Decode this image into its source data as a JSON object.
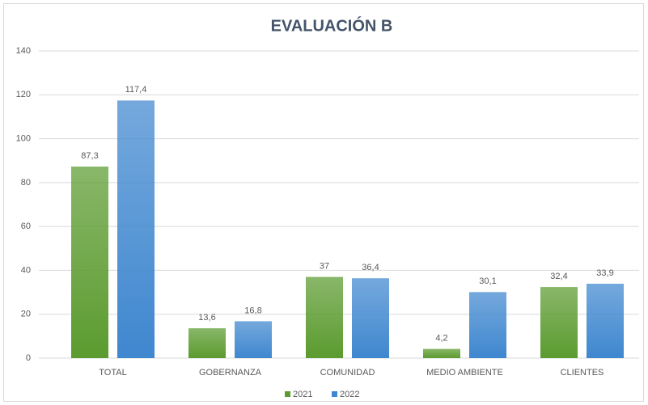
{
  "chart_data": {
    "type": "bar",
    "title": "EVALUACIÓN B",
    "categories": [
      "TOTAL",
      "GOBERNANZA",
      "COMUNIDAD",
      "MEDIO AMBIENTE",
      "CLIENTES"
    ],
    "series": [
      {
        "name": "2021",
        "color": "#5b9b2f",
        "values": [
          87.3,
          13.6,
          37,
          4.2,
          32.4
        ],
        "value_labels": [
          "87,3",
          "13,6",
          "37",
          "4,2",
          "32,4"
        ]
      },
      {
        "name": "2022",
        "color": "#3f87cf",
        "values": [
          117.4,
          16.8,
          36.4,
          30.1,
          33.9
        ],
        "value_labels": [
          "117,4",
          "16,8",
          "36,4",
          "30,1",
          "33,9"
        ]
      }
    ],
    "ylim": [
      0,
      140
    ],
    "yticks": [
      0,
      20,
      40,
      60,
      80,
      100,
      120,
      140
    ],
    "grid": true,
    "legend": "bottom"
  }
}
